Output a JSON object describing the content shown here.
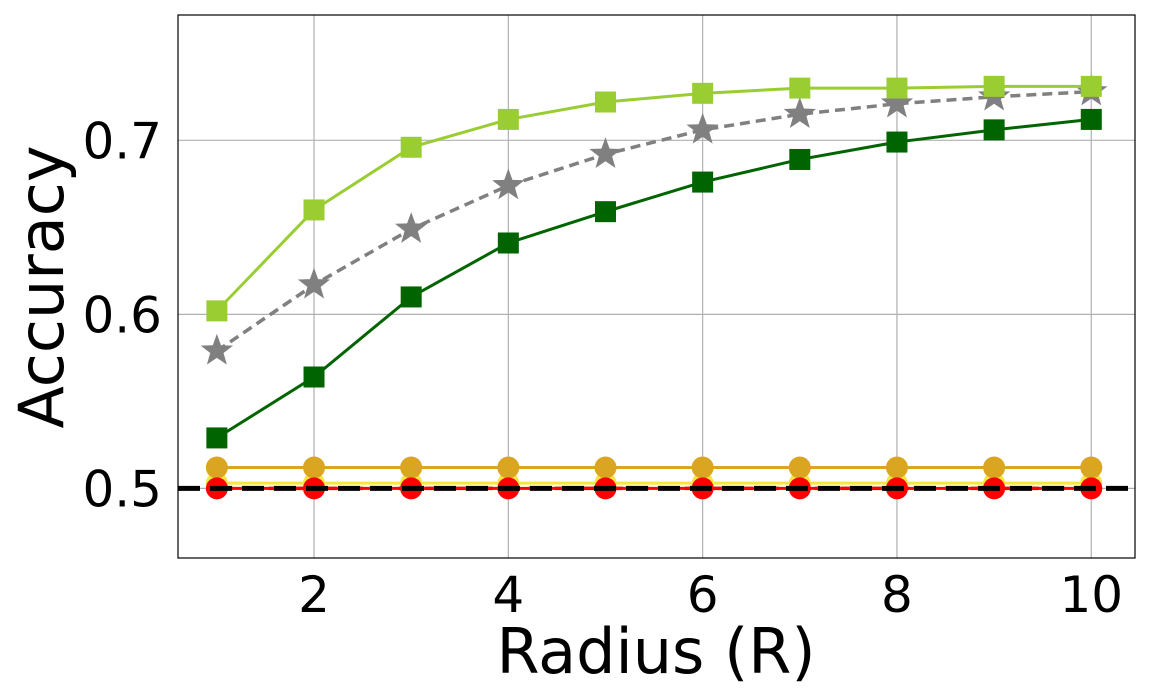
{
  "chart_data": {
    "type": "line",
    "title": "",
    "xlabel": "Radius (R)",
    "ylabel": "Accuracy",
    "xlim": [
      0.6,
      10.45
    ],
    "ylim": [
      0.46,
      0.772
    ],
    "xticks": [
      2,
      4,
      6,
      8,
      10
    ],
    "xtick_labels": [
      "2",
      "4",
      "6",
      "8",
      "10"
    ],
    "yticks": [
      0.5,
      0.6,
      0.7
    ],
    "ytick_labels": [
      "0.5",
      "0.6",
      "0.7"
    ],
    "grid": true,
    "legend": "none",
    "x": [
      1,
      2,
      3,
      4,
      5,
      6,
      7,
      8,
      9,
      10
    ],
    "reference_line": {
      "y": 0.5,
      "color": "#000000",
      "style": "dashed"
    },
    "series": [
      {
        "color": "#b00000",
        "style": "dashed",
        "marker": "none",
        "values": [
          0.5,
          0.5,
          0.5,
          0.5,
          0.5,
          0.5,
          0.5,
          0.5,
          0.5,
          0.5
        ]
      },
      {
        "color": "#f5e642",
        "style": "solid",
        "marker": "circle",
        "values": [
          0.503,
          0.503,
          0.503,
          0.503,
          0.503,
          0.503,
          0.503,
          0.503,
          0.503,
          0.503
        ]
      },
      {
        "color": "#daa520",
        "style": "solid",
        "marker": "circle",
        "values": [
          0.512,
          0.512,
          0.512,
          0.512,
          0.512,
          0.512,
          0.512,
          0.512,
          0.512,
          0.512
        ]
      },
      {
        "color": "#ff0000",
        "style": "solid",
        "marker": "circle",
        "values": [
          0.5,
          0.5,
          0.5,
          0.5,
          0.5,
          0.5,
          0.5,
          0.5,
          0.5,
          0.5
        ]
      },
      {
        "color": "#006400",
        "style": "solid",
        "marker": "square",
        "values": [
          0.529,
          0.564,
          0.61,
          0.641,
          0.659,
          0.676,
          0.689,
          0.699,
          0.706,
          0.712
        ]
      },
      {
        "color": "#808080",
        "style": "dashed",
        "marker": "star",
        "values": [
          0.579,
          0.617,
          0.649,
          0.674,
          0.692,
          0.706,
          0.715,
          0.721,
          0.725,
          0.728
        ]
      },
      {
        "color": "#9acd32",
        "style": "solid",
        "marker": "square",
        "values": [
          0.602,
          0.66,
          0.696,
          0.712,
          0.722,
          0.727,
          0.73,
          0.73,
          0.731,
          0.731
        ]
      }
    ]
  }
}
